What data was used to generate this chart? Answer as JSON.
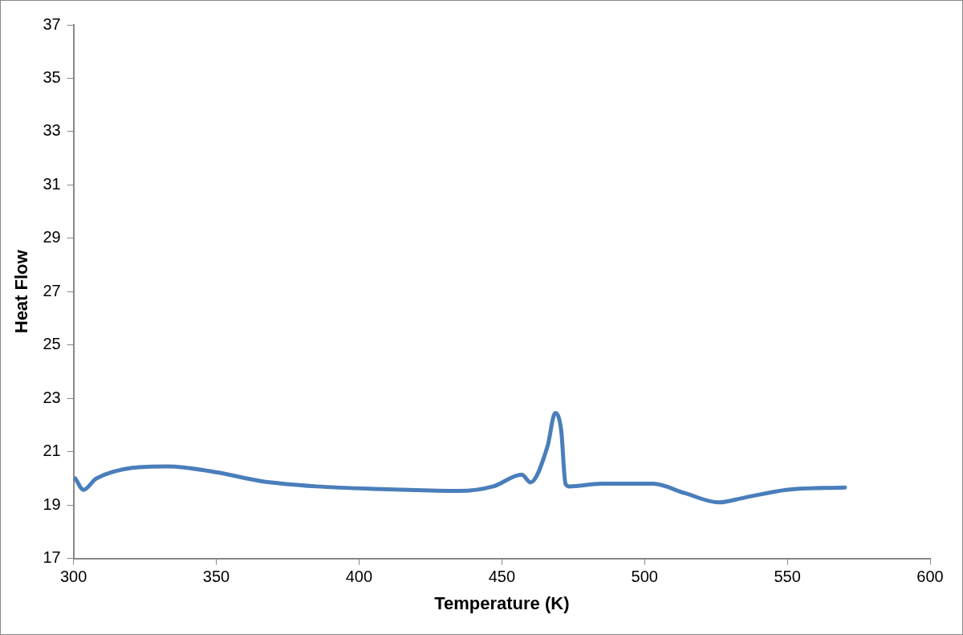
{
  "chart_data": {
    "type": "line",
    "xlabel": "Temperature (K)",
    "ylabel": "Heat Flow",
    "x": [
      300.6,
      303.5,
      308,
      333,
      350,
      365.5,
      385,
      408,
      435,
      447,
      457,
      460,
      466,
      468.7,
      470.8,
      472.3,
      473.7,
      484.7,
      494,
      503,
      514,
      526,
      535,
      549.6,
      570.2
    ],
    "series": [
      {
        "color": "#4a7ebb",
        "values": [
          20.0,
          19.57,
          20.0,
          20.45,
          20.23,
          19.9,
          19.7,
          19.6,
          19.53,
          19.7,
          20.14,
          19.85,
          21.2,
          22.45,
          21.8,
          19.8,
          19.7,
          19.8,
          19.8,
          19.8,
          19.45,
          19.1,
          19.28,
          19.57,
          19.66
        ]
      }
    ],
    "xlim": [
      300,
      600
    ],
    "xticks": [
      300,
      350,
      400,
      450,
      500,
      550,
      600
    ],
    "ylim": [
      17,
      37
    ],
    "yticks": [
      17,
      19,
      21,
      23,
      25,
      27,
      29,
      31,
      33,
      35,
      37
    ],
    "grid": false,
    "legend": false,
    "marker": "none",
    "line_style": "solid"
  }
}
